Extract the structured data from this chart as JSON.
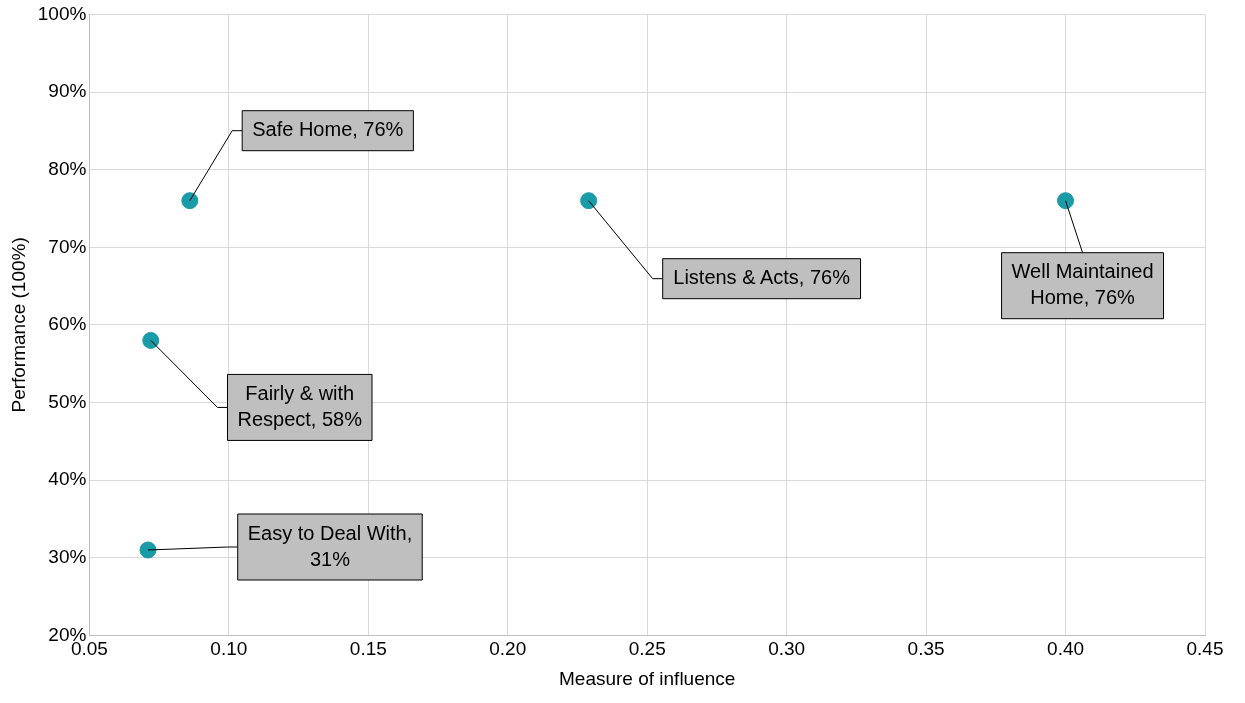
{
  "chart_data": {
    "type": "scatter",
    "xlabel": "Measure of influence",
    "ylabel": "Performance (100%)",
    "x": [
      0.086,
      0.229,
      0.4,
      0.072,
      0.071
    ],
    "series": [
      {
        "color": "#1a9ba8",
        "values": [
          76,
          76,
          76,
          58,
          31
        ]
      }
    ],
    "marker": "circle",
    "grid": true,
    "legend": false,
    "xlim": [
      0.05,
      0.45
    ],
    "xticks": [
      {
        "value": 0.05,
        "label": "0.05"
      },
      {
        "value": 0.1,
        "label": "0.10"
      },
      {
        "value": 0.15,
        "label": "0.15"
      },
      {
        "value": 0.2,
        "label": "0.20"
      },
      {
        "value": 0.25,
        "label": "0.25"
      },
      {
        "value": 0.3,
        "label": "0.30"
      },
      {
        "value": 0.35,
        "label": "0.35"
      },
      {
        "value": 0.4,
        "label": "0.40"
      },
      {
        "value": 0.45,
        "label": "0.45"
      }
    ],
    "ylim": [
      20,
      100
    ],
    "yticks": [
      {
        "value": 20,
        "label": "20%"
      },
      {
        "value": 30,
        "label": "30%"
      },
      {
        "value": 40,
        "label": "40%"
      },
      {
        "value": 50,
        "label": "50%"
      },
      {
        "value": 60,
        "label": "60%"
      },
      {
        "value": 70,
        "label": "70%"
      },
      {
        "value": 80,
        "label": "80%"
      },
      {
        "value": 90,
        "label": "90%"
      },
      {
        "value": 100,
        "label": "100%"
      }
    ],
    "annotations": [
      {
        "text": "Safe Home, 76%",
        "x": 0.086,
        "y": 76
      },
      {
        "text": "Listens & Acts, 76%",
        "x": 0.229,
        "y": 76
      },
      {
        "text": "Well Maintained Home, 76%",
        "x": 0.4,
        "y": 76
      },
      {
        "text": "Fairly & with Respect, 58%",
        "x": 0.072,
        "y": 58
      },
      {
        "text": "Easy to Deal With, 31%",
        "x": 0.071,
        "y": 31
      }
    ]
  }
}
